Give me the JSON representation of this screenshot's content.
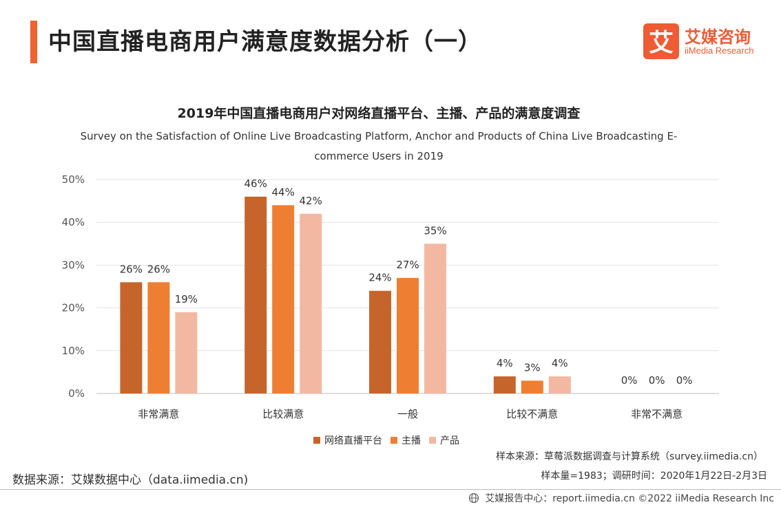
{
  "header": {
    "title": "中国直播电商用户满意度数据分析（一）",
    "logo_glyph": "艾",
    "logo_cn": "艾媒咨询",
    "logo_en": "iiMedia Research",
    "accent_color": "#f0642d"
  },
  "chart_data": {
    "type": "bar",
    "title": "2019年中国直播电商用户对网络直播平台、主播、产品的满意度调查",
    "subtitle": "Survey on the Satisfaction of Online Live Broadcasting Platform, Anchor and Products of China Live Broadcasting E-commerce Users in 2019",
    "categories": [
      "非常满意",
      "比较满意",
      "一般",
      "比较不满意",
      "非常不满意"
    ],
    "series": [
      {
        "name": "网络直播平台",
        "values": [
          26,
          46,
          24,
          4,
          0
        ],
        "color": "#c5652b"
      },
      {
        "name": "主播",
        "values": [
          26,
          44,
          27,
          3,
          0
        ],
        "color": "#ee7f32"
      },
      {
        "name": "产品",
        "values": [
          19,
          42,
          35,
          4,
          0
        ],
        "color": "#f3b8a2"
      }
    ],
    "y_ticks": [
      "0%",
      "10%",
      "20%",
      "30%",
      "40%",
      "50%"
    ],
    "ylim": [
      0,
      50
    ],
    "value_suffix": "%",
    "grid": true,
    "legend_position": "bottom"
  },
  "notes": {
    "sample_source": "样本来源：草莓派数据调查与计算系统（survey.iimedia.cn）",
    "sample_size": "样本量=1983；调研时间：2020年1月22日-2月3日",
    "data_source": "数据来源：艾媒数据中心（data.iimedia.cn)"
  },
  "footer": {
    "text": "艾媒报告中心：report.iimedia.cn   ©2022  iiMedia Research  Inc",
    "icon": "globe-icon"
  }
}
